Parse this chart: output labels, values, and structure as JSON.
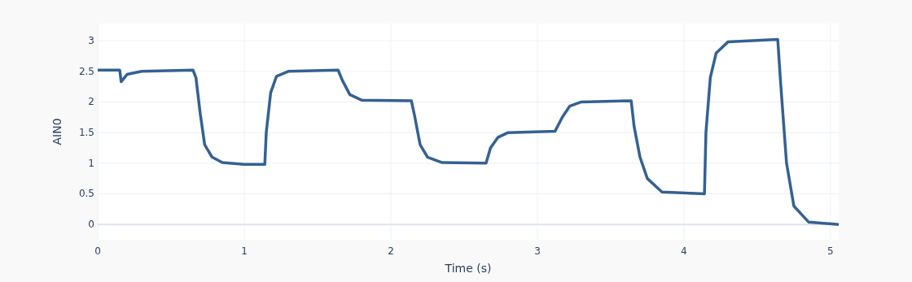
{
  "chart_data": {
    "type": "line",
    "xlabel": "Time (s)",
    "ylabel": "AIN0",
    "xlim": [
      0,
      5.056
    ],
    "xticks": [
      0,
      1,
      2,
      3,
      4,
      5
    ],
    "ylim": [
      -0.25,
      3.28
    ],
    "yticks": [
      0,
      0.5,
      1,
      1.5,
      2,
      2.5,
      3
    ],
    "grid": true,
    "marker": "none",
    "line_style": "solid",
    "series": [
      {
        "color": "#346192",
        "x": [
          0,
          0.15,
          0.16,
          0.2,
          0.3,
          0.65,
          0.67,
          0.7,
          0.73,
          0.78,
          0.85,
          1.0,
          1.14,
          1.15,
          1.18,
          1.22,
          1.3,
          1.64,
          1.67,
          1.72,
          1.8,
          2.14,
          2.16,
          2.2,
          2.25,
          2.35,
          2.65,
          2.68,
          2.73,
          2.8,
          3.12,
          3.17,
          3.22,
          3.3,
          3.64,
          3.66,
          3.7,
          3.75,
          3.85,
          4.14,
          4.15,
          4.18,
          4.22,
          4.3,
          4.64,
          4.66,
          4.7,
          4.75,
          4.85,
          5.056
        ],
        "values": [
          2.52,
          2.52,
          2.33,
          2.45,
          2.5,
          2.52,
          2.4,
          1.8,
          1.3,
          1.1,
          1.01,
          0.98,
          0.98,
          1.5,
          2.15,
          2.42,
          2.5,
          2.52,
          2.35,
          2.12,
          2.03,
          2.02,
          1.8,
          1.3,
          1.1,
          1.01,
          1.0,
          1.25,
          1.42,
          1.5,
          1.52,
          1.75,
          1.93,
          2.0,
          2.02,
          1.6,
          1.1,
          0.75,
          0.53,
          0.5,
          1.5,
          2.4,
          2.8,
          2.98,
          3.02,
          2.3,
          1.0,
          0.3,
          0.04,
          0.0
        ]
      }
    ]
  }
}
